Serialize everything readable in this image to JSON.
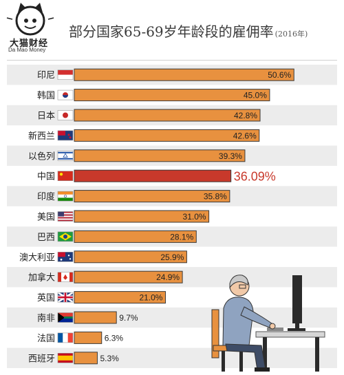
{
  "header": {
    "logo_cn": "大猫财经",
    "logo_en": "Da Mao Money",
    "title": "部分国家65-69岁年龄段的雇佣率",
    "title_year": "(2016年)"
  },
  "chart_data": {
    "type": "bar",
    "orientation": "horizontal",
    "title": "部分国家65-69岁年龄段的雇佣率",
    "subtitle": "(2016年)",
    "xlabel": "",
    "ylabel": "",
    "xlim": [
      0,
      55
    ],
    "grid": false,
    "legend": "none",
    "categories": [
      "印尼",
      "韩国",
      "日本",
      "新西兰",
      "以色列",
      "中国",
      "印度",
      "美国",
      "巴西",
      "澳大利亚",
      "加拿大",
      "英国",
      "南非",
      "法国",
      "西班牙"
    ],
    "values": [
      50.6,
      45.0,
      42.8,
      42.6,
      39.3,
      36.09,
      35.8,
      31.0,
      28.1,
      25.9,
      24.9,
      21.0,
      9.7,
      6.3,
      5.3
    ],
    "labels": [
      "50.6%",
      "45.0%",
      "42.8%",
      "42.6%",
      "39.3%",
      "36.09%",
      "35.8%",
      "31.0%",
      "28.1%",
      "25.9%",
      "24.9%",
      "21.0%",
      "9.7%",
      "6.3%",
      "5.3%"
    ],
    "flags": [
      "flag-indonesia",
      "flag-south-korea",
      "flag-japan",
      "flag-new-zealand",
      "flag-israel",
      "flag-china",
      "flag-india",
      "flag-usa",
      "flag-brazil",
      "flag-australia",
      "flag-canada",
      "flag-uk",
      "flag-south-africa",
      "flag-france",
      "flag-spain"
    ],
    "highlight_index": 5,
    "colors": {
      "bar": "#e8913f",
      "bar_stroke": "#3a3a3a",
      "highlight": "#c8392b",
      "highlight_label": "#c8392b",
      "stripe": "#ececec"
    }
  }
}
